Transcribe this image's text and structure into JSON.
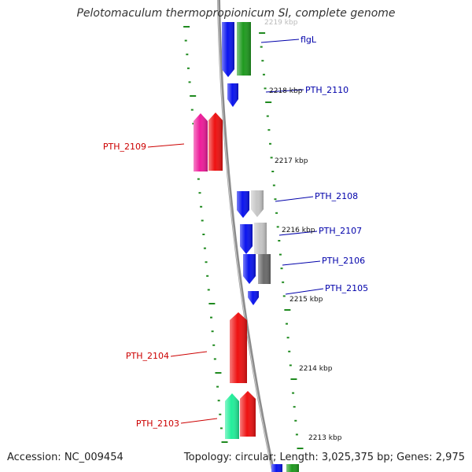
{
  "title": "Pelotomaculum thermopropionicum SI, complete genome",
  "accession_label": "Accession: NC_009454",
  "summary_label": "Topology: circular; Length: 3,025,375 bp; Genes: 2,975",
  "colors": {
    "backbone": "#8c8c8c",
    "tick": "#1f8a1f",
    "forward_label": "#0000aa",
    "reverse_label": "#cc0000",
    "blue": "#0a14ee",
    "green": "#1f9a1f",
    "red": "#ee1111",
    "magenta": "#ee1c9a",
    "light_gray": "#c6c6c6",
    "dark_gray": "#6a6a6a",
    "teal": "#22ee9a"
  },
  "scale": {
    "labels": [
      "2219 kbp",
      "2218 kbp",
      "2217 kbp",
      "2216 kbp",
      "2215 kbp",
      "2214 kbp",
      "2213 kbp"
    ]
  },
  "genes": {
    "forward": [
      {
        "label": "flgL",
        "color": "green"
      },
      {
        "label": "",
        "color": "blue"
      },
      {
        "label": "",
        "color": "blue"
      },
      {
        "label": "PTH_2110",
        "color": "blue"
      },
      {
        "label": "PTH_2108",
        "color": "light_gray"
      },
      {
        "label": "",
        "color": "blue"
      },
      {
        "label": "PTH_2107",
        "color": "light_gray"
      },
      {
        "label": "",
        "color": "blue"
      },
      {
        "label": "PTH_2106",
        "color": "dark_gray"
      },
      {
        "label": "",
        "color": "blue"
      },
      {
        "label": "PTH_2105",
        "color": "blue"
      },
      {
        "label": "",
        "color": "blue"
      },
      {
        "label": "",
        "color": "green"
      }
    ],
    "reverse": [
      {
        "label": "PTH_2109",
        "color": "magenta"
      },
      {
        "label": "",
        "color": "red"
      },
      {
        "label": "PTH_2104",
        "color": "red"
      },
      {
        "label": "PTH_2103",
        "color": "teal"
      },
      {
        "label": "",
        "color": "red"
      }
    ]
  }
}
